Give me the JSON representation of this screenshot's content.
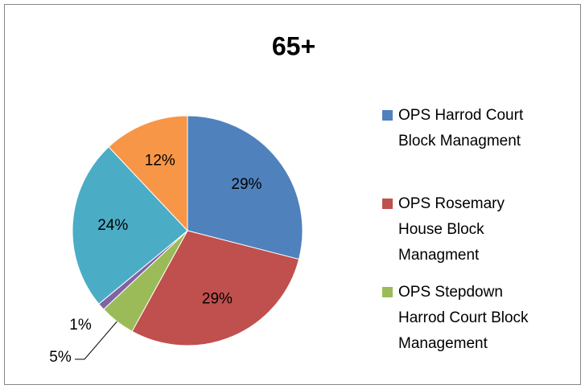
{
  "chart_data": {
    "type": "pie",
    "title": "65+",
    "categories": [
      "OPS Harrod Court Block Managment",
      "OPS Rosemary House Block Managment",
      "OPS Stepdown Harrod Court Block Management",
      null,
      null,
      null
    ],
    "values": [
      29,
      29,
      5,
      1,
      24,
      12
    ],
    "value_labels": [
      "29%",
      "29%",
      "5%",
      "1%",
      "24%",
      "12%"
    ],
    "colors": [
      "#4f81bd",
      "#c0504d",
      "#9bbb59",
      "#8064a2",
      "#4bacc6",
      "#f79646"
    ],
    "legend": "right"
  }
}
